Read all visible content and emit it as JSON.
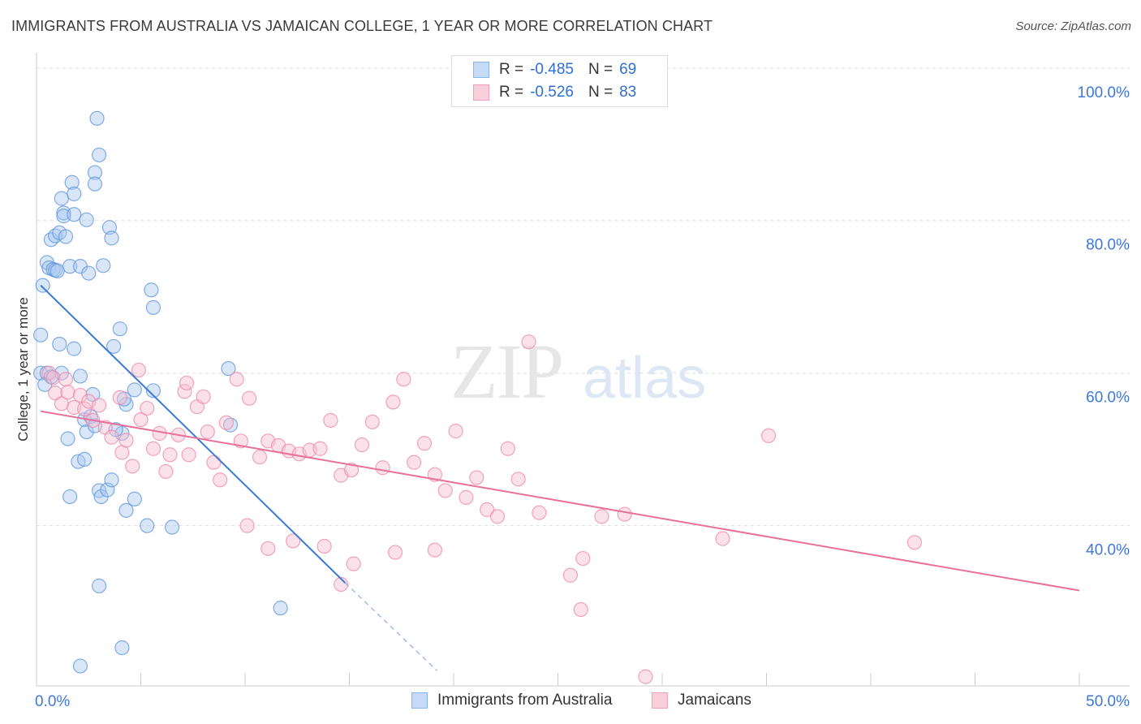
{
  "title": "IMMIGRANTS FROM AUSTRALIA VS JAMAICAN COLLEGE, 1 YEAR OR MORE CORRELATION CHART",
  "source": "Source: ZipAtlas.com",
  "watermark": {
    "zip": "ZIP",
    "atlas": "atlas"
  },
  "legend": {
    "rows": [
      {
        "r_label": "R =",
        "r_value": "-0.485",
        "n_label": "N =",
        "n_value": "69",
        "color": "#8ab4ec",
        "fill": "#c5daf6"
      },
      {
        "r_label": "R =",
        "r_value": "-0.526",
        "n_label": "N =",
        "n_value": "83",
        "color": "#f0a0bc",
        "fill": "#f9cfdc"
      }
    ]
  },
  "bottom_legend": [
    "Immigrants from Australia",
    "Jamaicans"
  ],
  "chart_data": {
    "type": "scatter",
    "xlabel": "",
    "ylabel": "College, 1 year or more",
    "xlim": [
      0,
      50
    ],
    "ylim": [
      19,
      102
    ],
    "x_tick_labels": [
      "0.0%",
      "50.0%"
    ],
    "y_ticks": [
      40,
      60,
      80,
      100
    ],
    "y_tick_labels": [
      "40.0%",
      "60.0%",
      "80.0%",
      "100.0%"
    ],
    "grid": true,
    "series": [
      {
        "name": "Immigrants from Australia",
        "color": "#5b93dc",
        "fill": "#a9c8f0",
        "trend": {
          "x1": 0.2,
          "y1": 71.5,
          "x2": 14.8,
          "y2": 32.5,
          "dash_x2": 19.2,
          "dash_y2": 21.0
        },
        "points": [
          [
            0.3,
            71.5
          ],
          [
            0.5,
            74.5
          ],
          [
            0.6,
            73.8
          ],
          [
            0.7,
            77.5
          ],
          [
            0.8,
            73.6
          ],
          [
            0.9,
            78.0
          ],
          [
            0.9,
            73.5
          ],
          [
            1.0,
            73.4
          ],
          [
            1.1,
            63.8
          ],
          [
            1.2,
            60.0
          ],
          [
            1.1,
            78.4
          ],
          [
            1.2,
            82.9
          ],
          [
            1.3,
            81.0
          ],
          [
            1.3,
            80.6
          ],
          [
            1.4,
            77.9
          ],
          [
            1.6,
            74.0
          ],
          [
            1.7,
            85.0
          ],
          [
            1.8,
            80.8
          ],
          [
            1.8,
            83.5
          ],
          [
            1.8,
            63.2
          ],
          [
            2.1,
            74.0
          ],
          [
            2.1,
            59.6
          ],
          [
            2.4,
            80.1
          ],
          [
            2.5,
            73.1
          ],
          [
            2.7,
            57.2
          ],
          [
            2.8,
            86.3
          ],
          [
            2.8,
            84.8
          ],
          [
            3.0,
            88.6
          ],
          [
            2.9,
            93.4
          ],
          [
            3.2,
            74.1
          ],
          [
            3.5,
            79.1
          ],
          [
            3.6,
            77.7
          ],
          [
            3.7,
            63.5
          ],
          [
            4.0,
            65.8
          ],
          [
            4.1,
            52.1
          ],
          [
            4.3,
            55.9
          ],
          [
            4.7,
            57.8
          ],
          [
            5.5,
            70.9
          ],
          [
            5.6,
            68.6
          ],
          [
            5.6,
            57.7
          ],
          [
            1.5,
            51.4
          ],
          [
            1.6,
            43.8
          ],
          [
            2.0,
            48.4
          ],
          [
            2.3,
            48.7
          ],
          [
            2.3,
            53.9
          ],
          [
            2.4,
            52.3
          ],
          [
            2.6,
            54.3
          ],
          [
            2.8,
            53.1
          ],
          [
            3.0,
            44.6
          ],
          [
            3.1,
            43.8
          ],
          [
            3.4,
            44.7
          ],
          [
            3.6,
            46.0
          ],
          [
            3.8,
            52.6
          ],
          [
            4.2,
            56.6
          ],
          [
            4.3,
            42.0
          ],
          [
            4.7,
            43.5
          ],
          [
            5.3,
            40.0
          ],
          [
            9.2,
            60.6
          ],
          [
            9.3,
            53.2
          ],
          [
            6.5,
            39.8
          ],
          [
            3.0,
            32.1
          ],
          [
            4.1,
            24.0
          ],
          [
            2.1,
            21.6
          ],
          [
            11.7,
            29.2
          ],
          [
            0.2,
            65.0
          ],
          [
            0.2,
            60.0
          ],
          [
            0.5,
            60.0
          ],
          [
            0.7,
            59.5
          ],
          [
            0.4,
            58.5
          ]
        ]
      },
      {
        "name": "Jamaicans",
        "color": "#ee86a8",
        "fill": "#f7bfd1",
        "trend": {
          "x1": 0.2,
          "y1": 55.0,
          "x2": 50.0,
          "y2": 31.5
        },
        "points": [
          [
            0.6,
            60.0
          ],
          [
            0.8,
            59.4
          ],
          [
            0.9,
            57.4
          ],
          [
            1.2,
            56.0
          ],
          [
            1.4,
            59.2
          ],
          [
            1.5,
            57.5
          ],
          [
            1.8,
            55.5
          ],
          [
            2.1,
            57.1
          ],
          [
            2.3,
            55.3
          ],
          [
            2.5,
            56.3
          ],
          [
            2.7,
            53.8
          ],
          [
            3.0,
            55.8
          ],
          [
            3.3,
            52.9
          ],
          [
            3.6,
            51.6
          ],
          [
            4.0,
            56.8
          ],
          [
            4.1,
            49.6
          ],
          [
            4.3,
            51.2
          ],
          [
            4.6,
            47.8
          ],
          [
            4.9,
            60.4
          ],
          [
            5.0,
            53.9
          ],
          [
            5.3,
            55.4
          ],
          [
            5.6,
            50.1
          ],
          [
            5.9,
            52.1
          ],
          [
            6.2,
            47.1
          ],
          [
            6.4,
            49.3
          ],
          [
            6.8,
            51.9
          ],
          [
            7.1,
            57.6
          ],
          [
            7.2,
            58.7
          ],
          [
            7.3,
            49.3
          ],
          [
            7.7,
            55.6
          ],
          [
            8.0,
            56.9
          ],
          [
            8.2,
            52.3
          ],
          [
            8.5,
            48.3
          ],
          [
            8.8,
            46.0
          ],
          [
            9.1,
            53.5
          ],
          [
            9.6,
            59.2
          ],
          [
            9.8,
            51.1
          ],
          [
            10.2,
            56.7
          ],
          [
            10.7,
            49.0
          ],
          [
            11.1,
            51.1
          ],
          [
            11.6,
            50.5
          ],
          [
            12.1,
            49.8
          ],
          [
            12.6,
            49.4
          ],
          [
            13.1,
            49.9
          ],
          [
            13.6,
            50.1
          ],
          [
            14.1,
            53.8
          ],
          [
            14.6,
            46.6
          ],
          [
            15.1,
            47.3
          ],
          [
            15.6,
            50.6
          ],
          [
            16.1,
            53.6
          ],
          [
            16.6,
            47.6
          ],
          [
            17.1,
            56.2
          ],
          [
            17.6,
            59.2
          ],
          [
            18.1,
            48.3
          ],
          [
            18.6,
            50.8
          ],
          [
            19.1,
            46.7
          ],
          [
            19.6,
            44.6
          ],
          [
            20.1,
            52.4
          ],
          [
            20.6,
            43.7
          ],
          [
            21.1,
            46.3
          ],
          [
            21.6,
            42.1
          ],
          [
            22.1,
            41.2
          ],
          [
            22.6,
            50.1
          ],
          [
            23.1,
            46.1
          ],
          [
            23.6,
            64.1
          ],
          [
            24.1,
            41.7
          ],
          [
            25.6,
            33.5
          ],
          [
            26.1,
            29.0
          ],
          [
            27.1,
            41.2
          ],
          [
            28.2,
            41.5
          ],
          [
            32.9,
            38.3
          ],
          [
            35.1,
            51.8
          ],
          [
            42.1,
            37.8
          ],
          [
            10.1,
            40.0
          ],
          [
            11.1,
            37.0
          ],
          [
            12.3,
            38.0
          ],
          [
            13.8,
            37.3
          ],
          [
            14.6,
            32.3
          ],
          [
            15.2,
            35.0
          ],
          [
            17.2,
            36.5
          ],
          [
            19.1,
            36.8
          ],
          [
            26.2,
            35.7
          ],
          [
            29.2,
            20.2
          ]
        ]
      }
    ]
  }
}
